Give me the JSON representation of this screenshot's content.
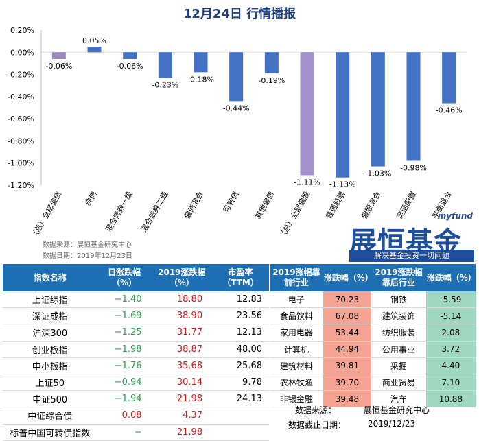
{
  "chart_data": {
    "type": "bar",
    "title": "12月24日  行情播报",
    "categories": [
      "（总）全部偏债",
      "纯债",
      "混合债券一级",
      "混合债券二级",
      "偏债混合",
      "可转债",
      "其他偏债",
      "（总）全部偏股",
      "普通股票",
      "偏股混合",
      "灵活配置",
      "平衡混合"
    ],
    "values": [
      -0.06,
      0.05,
      -0.06,
      -0.23,
      -0.18,
      -0.44,
      -0.19,
      -1.11,
      -1.13,
      -1.03,
      -0.98,
      -0.46
    ],
    "value_labels": [
      "-0.06%",
      "0.05%",
      "-0.06%",
      "-0.23%",
      "-0.18%",
      "-0.44%",
      "-0.19%",
      "-1.11%",
      "-1.13%",
      "-1.03%",
      "-0.98%",
      "-0.46%"
    ],
    "ylim": [
      -1.2,
      0.2
    ],
    "yticks": [
      "0.20%",
      "0.00%",
      "-0.20%",
      "-0.40%",
      "-0.60%",
      "-0.80%",
      "-1.00%",
      "-1.20%"
    ],
    "ytick_values": [
      0.2,
      0.0,
      -0.2,
      -0.4,
      -0.6,
      -0.8,
      -1.0,
      -1.2
    ],
    "bar_colors": [
      "#9e8dc3",
      "#4472c4",
      "#4472c4",
      "#4472c4",
      "#4472c4",
      "#4472c4",
      "#4472c4",
      "#a393cb",
      "#4472c4",
      "#4472c4",
      "#4472c4",
      "#4472c4"
    ],
    "grid": false,
    "xlabel": "",
    "ylabel": ""
  },
  "source": {
    "line1": "数据来源：展恒基金研究中心",
    "line2": "数据日期：2019年12月23日"
  },
  "brand": {
    "small": "myfund",
    "logo": "展恒基金",
    "slogan": "解决基金投资一切问题"
  },
  "left_table": {
    "headers": [
      "指数名称",
      "日涨跌幅（%）",
      "2019涨跌幅（%）",
      "市盈率（TTM）"
    ],
    "rows": [
      {
        "name": "上证综指",
        "day": "−1.40",
        "ytd": "18.80",
        "pe": "12.83"
      },
      {
        "name": "深证成指",
        "day": "−1.69",
        "ytd": "38.90",
        "pe": "23.56"
      },
      {
        "name": "沪深300",
        "day": "−1.25",
        "ytd": "31.77",
        "pe": "12.13"
      },
      {
        "name": "创业板指",
        "day": "−1.98",
        "ytd": "38.87",
        "pe": "48.00"
      },
      {
        "name": "中小板指",
        "day": "−1.76",
        "ytd": "35.68",
        "pe": "25.68"
      },
      {
        "name": "上证50",
        "day": "−0.94",
        "ytd": "30.14",
        "pe": "9.78"
      },
      {
        "name": "中证500",
        "day": "−1.94",
        "ytd": "21.98",
        "pe": "24.13"
      },
      {
        "name": "中证综合债",
        "day": "0.08",
        "ytd": "4.37",
        "pe": ""
      },
      {
        "name": "标普中国可转债指数",
        "day": "−",
        "ytd": "21.98",
        "pe": ""
      }
    ]
  },
  "right_table": {
    "headers": [
      "2019涨幅靠前行业",
      "涨跌幅（%）",
      "2019涨跌幅靠后行业",
      "涨跌幅（%）"
    ],
    "rows": [
      {
        "top": "电子",
        "top_val": "70.23",
        "bottom": "钢铁",
        "bottom_val": "-5.59"
      },
      {
        "top": "食品饮料",
        "top_val": "67.08",
        "bottom": "建筑装饰",
        "bottom_val": "-5.14"
      },
      {
        "top": "家用电器",
        "top_val": "53.44",
        "bottom": "纺织服装",
        "bottom_val": "2.08"
      },
      {
        "top": "计算机",
        "top_val": "44.94",
        "bottom": "公用事业",
        "bottom_val": "3.72"
      },
      {
        "top": "建筑材料",
        "top_val": "39.81",
        "bottom": "采掘",
        "bottom_val": "4.40"
      },
      {
        "top": "农林牧渔",
        "top_val": "39.70",
        "bottom": "商业贸易",
        "bottom_val": "7.10"
      },
      {
        "top": "非银金融",
        "top_val": "39.48",
        "bottom": "汽车",
        "bottom_val": "10.88"
      }
    ],
    "note_source_label": "数据来源：",
    "note_source": "展恒基金研究中心",
    "note_date_label": "数据截止日期：",
    "note_date": "2019/12/23"
  },
  "colors": {
    "header_bg": "#1f6fb5",
    "bar": "#4472c4",
    "bar_highlight": "#a393cb",
    "up": "#d11b1b",
    "down": "#2aa04a"
  }
}
